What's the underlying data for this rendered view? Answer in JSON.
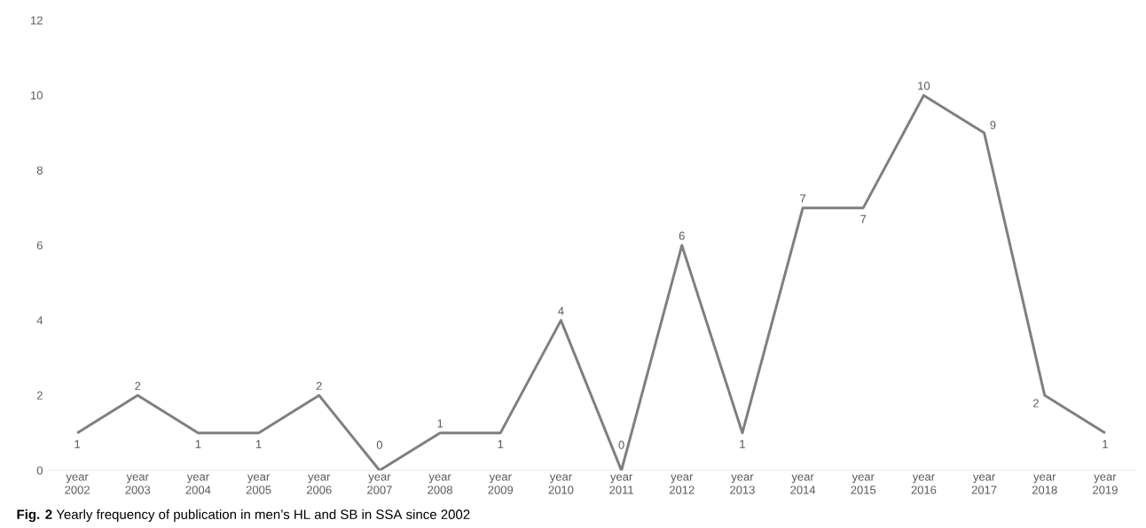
{
  "chart_data": {
    "type": "line",
    "categories": [
      "year 2002",
      "year 2003",
      "year 2004",
      "year 2005",
      "year 2006",
      "year 2007",
      "year 2008",
      "year 2009",
      "year 2010",
      "year 2011",
      "year 2012",
      "year 2013",
      "year 2014",
      "year 2015",
      "year 2016",
      "year 2017",
      "year 2018",
      "year 2019"
    ],
    "values": [
      1,
      2,
      1,
      1,
      2,
      0,
      1,
      1,
      4,
      0,
      6,
      1,
      7,
      7,
      10,
      9,
      2,
      1
    ],
    "color": "#7f7f7f",
    "ylim": [
      0,
      12
    ],
    "yticks": [
      0,
      2,
      4,
      6,
      8,
      10,
      12
    ],
    "data_labels": true,
    "grid": false,
    "legend": false,
    "marker": "none",
    "line_style": "solid",
    "annotations": [
      "**Fig. 2** Yearly frequency of publication in men’s HL and SB in SSA since 2002"
    ]
  }
}
